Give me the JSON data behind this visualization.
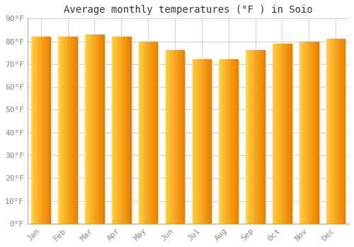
{
  "title": "Average monthly temperatures (°F ) in Soio",
  "months": [
    "Jan",
    "Feb",
    "Mar",
    "Apr",
    "May",
    "Jun",
    "Jul",
    "Aug",
    "Sep",
    "Oct",
    "Nov",
    "Dec"
  ],
  "values": [
    82,
    82,
    83,
    82,
    80,
    76,
    72,
    72,
    76,
    79,
    80,
    81
  ],
  "bar_color_left": "#FFD040",
  "bar_color_right": "#F5A000",
  "bar_color_edge": "#D08000",
  "background_color": "#FFFFFF",
  "plot_bg_color": "#FFFFFF",
  "grid_color": "#CCCCCC",
  "ylim": [
    0,
    90
  ],
  "yticks": [
    0,
    10,
    20,
    30,
    40,
    50,
    60,
    70,
    80,
    90
  ],
  "ytick_labels": [
    "0°F",
    "10°F",
    "20°F",
    "30°F",
    "40°F",
    "50°F",
    "60°F",
    "70°F",
    "80°F",
    "90°F"
  ],
  "title_fontsize": 10,
  "tick_fontsize": 8,
  "tick_font_color": "#888888",
  "figsize": [
    5.0,
    3.5
  ],
  "dpi": 100
}
